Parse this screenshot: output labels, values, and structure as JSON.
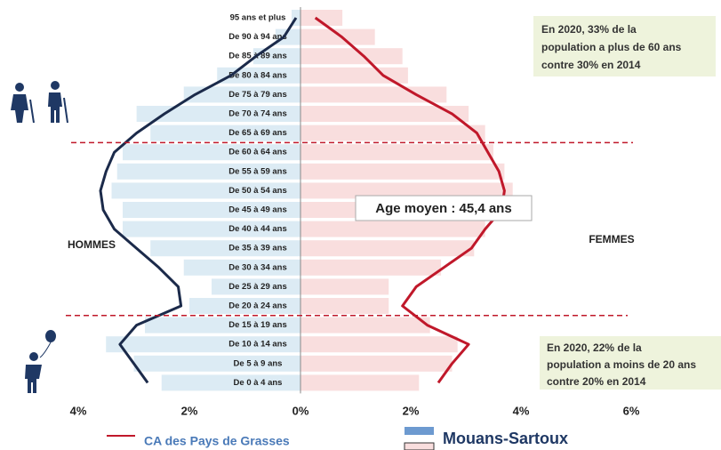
{
  "chart_data": {
    "type": "pyramid",
    "categories": [
      "95 ans et plus",
      "De 90 à 94 ans",
      "De 85 à 89 ans",
      "De 80 à 84 ans",
      "De 75 à 79 ans",
      "De 70 à 74 ans",
      "De 65 à 69 ans",
      "De 60 à 64 ans",
      "De 55 à 59 ans",
      "De 50 à 54 ans",
      "De 45 à 49 ans",
      "De 40 à 44 ans",
      "De 35 à 39 ans",
      "De 30 à 34 ans",
      "De 25 à 29 ans",
      "De 20 à 24 ans",
      "De 15 à 19 ans",
      "De 10 à 14 ans",
      "De 5 à 9 ans",
      "De 0 à 4 ans"
    ],
    "left_axis": {
      "xlim": [
        0,
        4
      ],
      "xticks": [
        {
          "value": 4,
          "label": "4%"
        },
        {
          "value": 2,
          "label": "2%"
        }
      ]
    },
    "right_axis": {
      "xlim": [
        0,
        6
      ],
      "xticks": [
        {
          "value": 0,
          "label": "0%"
        },
        {
          "value": 2,
          "label": "2%"
        },
        {
          "value": 4,
          "label": "4%"
        },
        {
          "value": 6,
          "label": "6%"
        }
      ]
    },
    "series": [
      {
        "name": "Mouans-Sartoux",
        "style": "bar",
        "men_color": "#dcebf4",
        "women_color": "#f9dede",
        "men": [
          0.16,
          0.45,
          0.85,
          1.5,
          2.1,
          2.95,
          2.7,
          3.2,
          3.3,
          3.4,
          3.2,
          3.2,
          2.7,
          2.1,
          1.6,
          2.0,
          2.8,
          3.5,
          3.0,
          2.5
        ],
        "women": [
          0.76,
          1.35,
          1.85,
          1.95,
          2.65,
          3.05,
          3.35,
          3.5,
          3.7,
          3.85,
          3.6,
          3.35,
          3.15,
          2.55,
          1.6,
          1.6,
          2.35,
          2.85,
          2.75,
          2.15
        ]
      },
      {
        "name": "CA des Pays de Grasses",
        "style": "line",
        "men_color": "#1b2a4a",
        "women_color": "#c0182a",
        "men": [
          0.08,
          0.3,
          0.8,
          1.25,
          1.9,
          2.45,
          2.95,
          3.35,
          3.5,
          3.6,
          3.55,
          3.35,
          2.95,
          2.55,
          2.2,
          2.15,
          2.95,
          3.25,
          3.0,
          2.75
        ],
        "women": [
          0.27,
          0.75,
          1.15,
          1.5,
          2.1,
          2.75,
          3.2,
          3.4,
          3.6,
          3.7,
          3.65,
          3.35,
          3.1,
          2.6,
          2.1,
          1.85,
          2.3,
          3.05,
          2.75,
          2.5
        ]
      }
    ],
    "men_label": "HOMMES",
    "women_label": "FEMMES",
    "mean_age": "Age moyen : 45,4 ans",
    "note_top": [
      "En 2020,  33% de la",
      "population a plus de 60 ans",
      "contre 30% en 2014"
    ],
    "note_bottom": [
      "En 2020, 22% de la",
      "population a moins de 20 ans",
      "contre 20% en 2014"
    ]
  }
}
